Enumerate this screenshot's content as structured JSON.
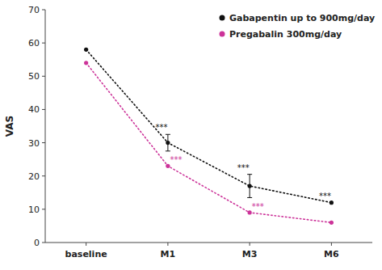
{
  "chart_data": {
    "type": "line",
    "categories": [
      "baseline",
      "M1",
      "M3",
      "M6"
    ],
    "series": [
      {
        "name": "Gabapentin up to 900mg/day",
        "color": "#111111",
        "line_style": "dotted",
        "marker": "dot",
        "values": [
          58,
          30,
          17,
          12
        ],
        "error": [
          null,
          2.5,
          3.5,
          null
        ]
      },
      {
        "name": "Pregabalin 300mg/day",
        "color": "#cc3399",
        "line_style": "dotted",
        "marker": "dot",
        "values": [
          54,
          23,
          9,
          6
        ]
      }
    ],
    "ylabel": "VAS",
    "ylim": [
      0,
      70
    ],
    "yticks": [
      0,
      10,
      20,
      30,
      40,
      50,
      60,
      70
    ],
    "legend": "upper right",
    "annotations": [
      {
        "text": "***",
        "series": "Gabapentin up to 900mg/day",
        "category": "M1"
      },
      {
        "text": "***",
        "series": "Gabapentin up to 900mg/day",
        "category": "M3"
      },
      {
        "text": "***",
        "series": "Gabapentin up to 900mg/day",
        "category": "M6"
      },
      {
        "text": "***",
        "series": "Pregabalin 300mg/day",
        "category": "M1"
      },
      {
        "text": "***",
        "series": "Pregabalin 300mg/day",
        "category": "M3"
      }
    ]
  }
}
